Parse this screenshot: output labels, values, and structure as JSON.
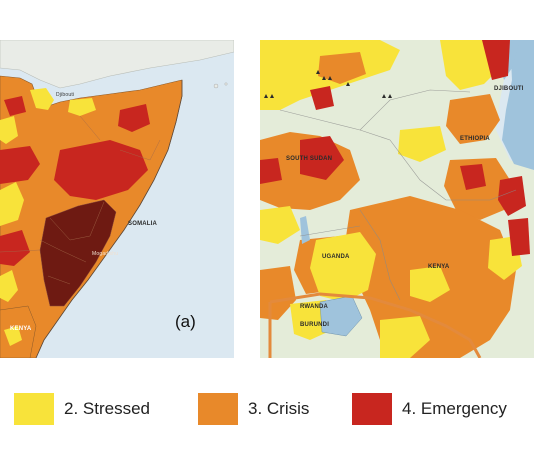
{
  "colors": {
    "water": "#dbe8f1",
    "land_outside": "#e9ece7",
    "minimal": "#e4ecd9",
    "stressed": "#f8e33a",
    "crisis": "#e8892a",
    "emergency": "#c8261f",
    "famine_risk": "#6e1a12",
    "border_outline": "#e38a3c"
  },
  "panel_a": {
    "tag": "(a)",
    "labels": {
      "djibouti": "Djibouti",
      "somalia": "SOMALIA",
      "mogadishu": "Mogadishu",
      "kenya": "KENYA"
    }
  },
  "panel_b": {
    "labels": {
      "djibouti": "DJIBOUTI",
      "ethiopia": "ETHIOPIA",
      "south_sudan": "SOUTH SUDAN",
      "uganda": "UGANDA",
      "kenya": "KENYA",
      "rwanda": "RWANDA",
      "burundi": "BURUNDI"
    }
  },
  "legend": [
    {
      "label": "2. Stressed",
      "color": "#f8e33a",
      "icon": "stressed-swatch"
    },
    {
      "label": "3. Crisis",
      "color": "#e8892a",
      "icon": "crisis-swatch"
    },
    {
      "label": "4. Emergency",
      "color": "#c8261f",
      "icon": "emergency-swatch"
    }
  ]
}
